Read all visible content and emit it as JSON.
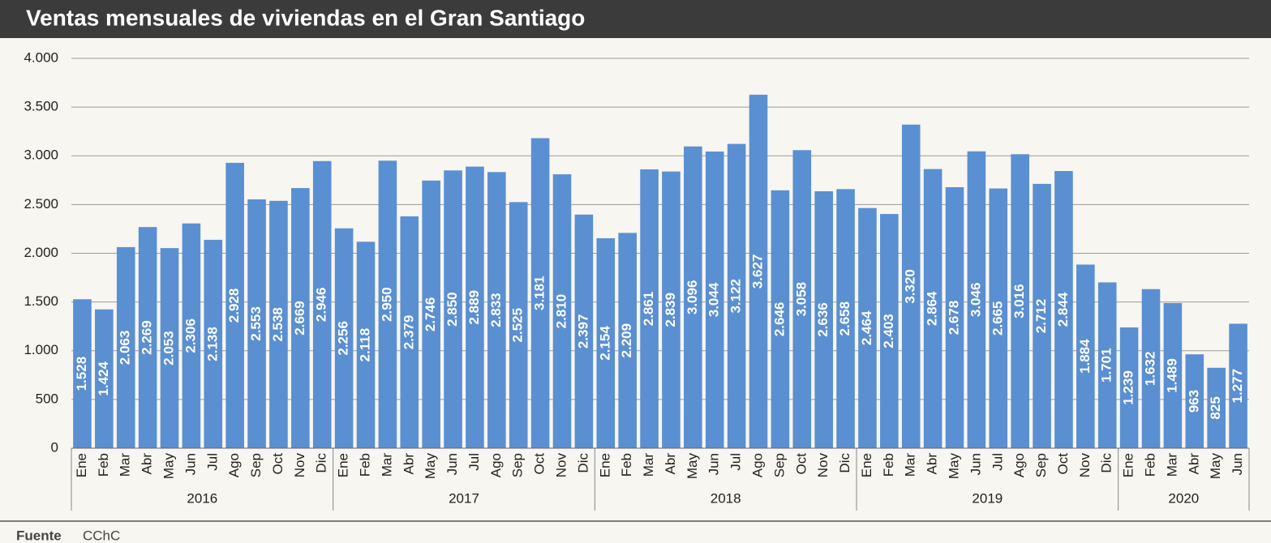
{
  "chart_data": {
    "type": "bar",
    "title": "Ventas mensuales de viviendas en el Gran Santiago",
    "groups": [
      {
        "name": "2016",
        "categories": [
          "Ene",
          "Feb",
          "Mar",
          "Abr",
          "May",
          "Jun",
          "Jul",
          "Ago",
          "Sep",
          "Oct",
          "Nov",
          "Dic"
        ]
      },
      {
        "name": "2017",
        "categories": [
          "Ene",
          "Feb",
          "Mar",
          "Abr",
          "May",
          "Jun",
          "Jul",
          "Ago",
          "Sep",
          "Oct",
          "Nov",
          "Dic"
        ]
      },
      {
        "name": "2018",
        "categories": [
          "Ene",
          "Feb",
          "Mar",
          "Abr",
          "May",
          "Jun",
          "Jul",
          "Ago",
          "Sep",
          "Oct",
          "Nov",
          "Dic"
        ]
      },
      {
        "name": "2019",
        "categories": [
          "Ene",
          "Feb",
          "Mar",
          "Abr",
          "May",
          "Jun",
          "Jul",
          "Ago",
          "Sep",
          "Oct",
          "Nov",
          "Dic"
        ]
      },
      {
        "name": "2020",
        "categories": [
          "Ene",
          "Feb",
          "Mar",
          "Abr",
          "May",
          "Jun"
        ]
      }
    ],
    "values": [
      1528,
      1424,
      2063,
      2269,
      2053,
      2306,
      2138,
      2928,
      2553,
      2538,
      2669,
      2946,
      2256,
      2118,
      2950,
      2379,
      2746,
      2850,
      2889,
      2833,
      2525,
      3181,
      2810,
      2397,
      2154,
      2209,
      2861,
      2839,
      3096,
      3044,
      3122,
      3627,
      2646,
      3058,
      2636,
      2658,
      2464,
      2403,
      3320,
      2864,
      2678,
      3046,
      2665,
      3016,
      2712,
      2844,
      1884,
      1701,
      1239,
      1632,
      1489,
      963,
      825,
      1277
    ],
    "value_labels": [
      "1.528",
      "1.424",
      "2.063",
      "2.269",
      "2.053",
      "2.306",
      "2.138",
      "2.928",
      "2.553",
      "2.538",
      "2.669",
      "2.946",
      "2.256",
      "2.118",
      "2.950",
      "2.379",
      "2.746",
      "2.850",
      "2.889",
      "2.833",
      "2.525",
      "3.181",
      "2.810",
      "2.397",
      "2.154",
      "2.209",
      "2.861",
      "2.839",
      "3.096",
      "3.044",
      "3.122",
      "3.627",
      "2.646",
      "3.058",
      "2.636",
      "2.658",
      "2.464",
      "2.403",
      "3.320",
      "2.864",
      "2.678",
      "3.046",
      "2.665",
      "3.016",
      "2.712",
      "2.844",
      "1.884",
      "1.701",
      "1.239",
      "1.632",
      "1.489",
      "963",
      "825",
      "1.277"
    ],
    "color": "#5a8fd2",
    "ylim": [
      0,
      4000
    ],
    "yticks": [
      0,
      500,
      {
        "value": 1000,
        "label": "1.000"
      },
      {
        "value": 1500,
        "label": "1.500"
      },
      {
        "value": 2000,
        "label": "2.000"
      },
      {
        "value": 2500,
        "label": "2.500"
      },
      {
        "value": 3000,
        "label": "3.000"
      },
      {
        "value": 3500,
        "label": "3.500"
      },
      {
        "value": 4000,
        "label": "4.000"
      }
    ],
    "grid": true,
    "source_label": "Fuente",
    "source": "CChC"
  }
}
